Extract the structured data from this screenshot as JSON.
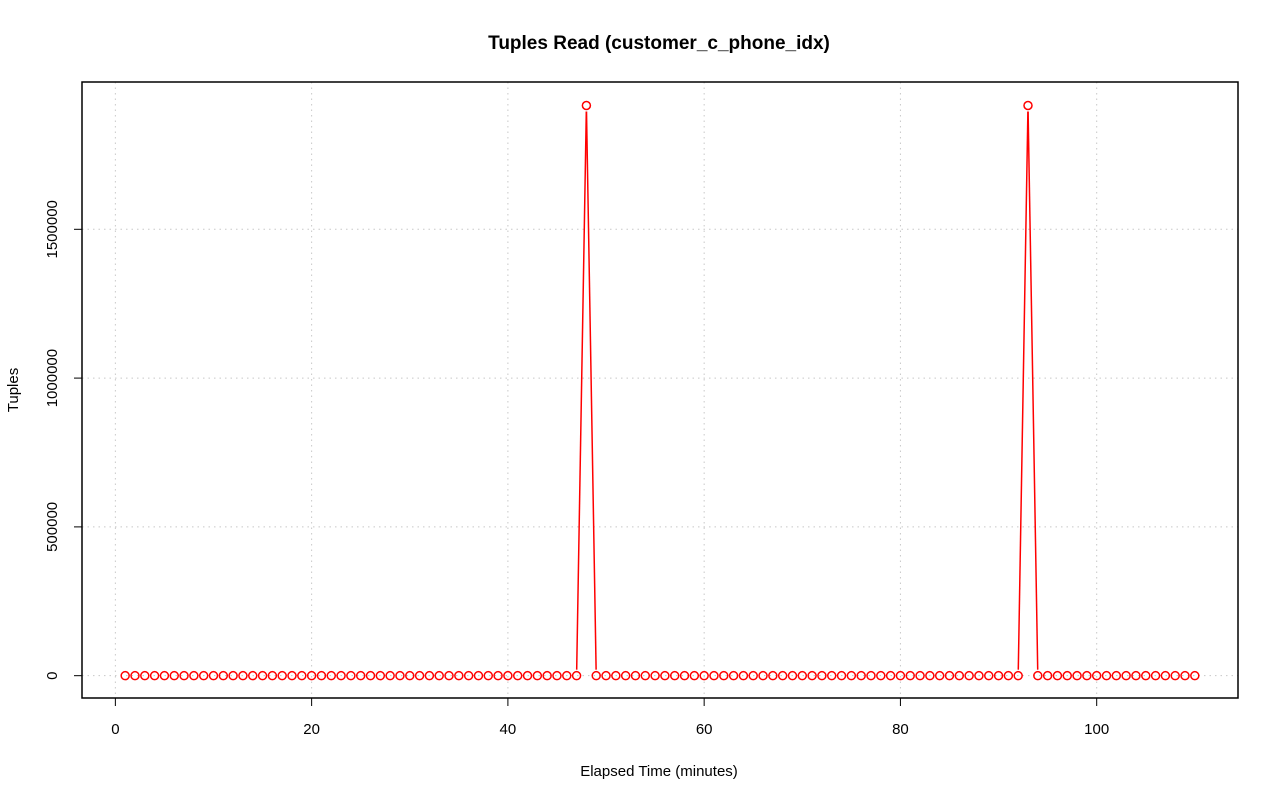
{
  "chart_data": {
    "type": "line",
    "title": "Tuples Read (customer_c_phone_idx)",
    "xlabel": "Elapsed Time (minutes)",
    "ylabel": "Tuples",
    "xlim": [
      -3.4,
      114.4
    ],
    "ylim": [
      -75000,
      1995000
    ],
    "x_ticks": [
      0,
      20,
      40,
      60,
      80,
      100
    ],
    "y_ticks": [
      0,
      500000,
      1000000,
      1500000
    ],
    "x_tick_labels": [
      "0",
      "20",
      "40",
      "60",
      "80",
      "100"
    ],
    "y_tick_labels": [
      "0",
      "500000",
      "1000000",
      "1500000"
    ],
    "grid": true,
    "series_color": "#ff0000",
    "x_start": 1,
    "x_end": 110,
    "baseline_value": 0,
    "spikes": [
      {
        "x": 48,
        "value": 1916000
      },
      {
        "x": 93,
        "value": 1916000
      }
    ]
  }
}
